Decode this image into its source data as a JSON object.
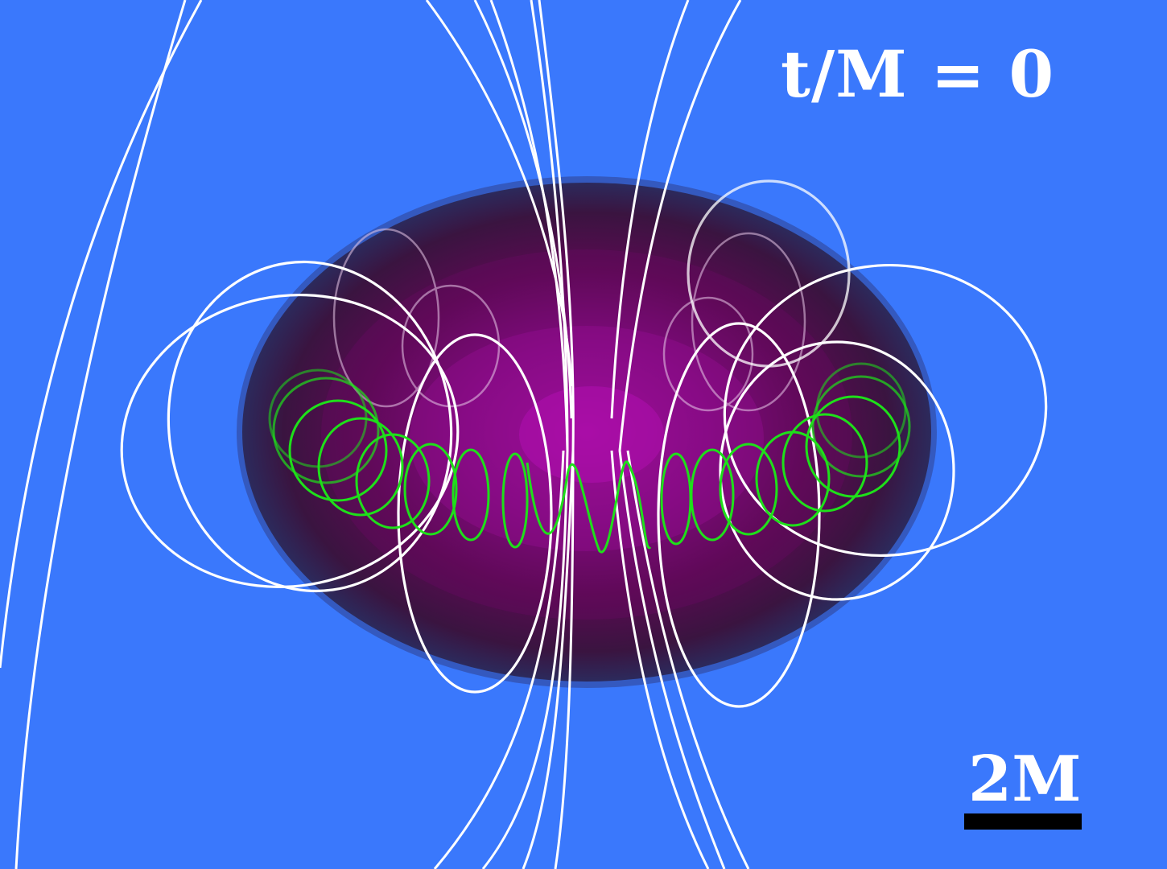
{
  "colors": {
    "background": "#3a78fc",
    "star_core": "#b80fb6",
    "star_edge": "#2a2350",
    "field_lines": "#ffffff",
    "toroidal_field": "#1ee01a",
    "text": "#ffffff",
    "scale_bar": "#000000"
  },
  "time_label": "t/M = 0",
  "scale_label": "2M"
}
